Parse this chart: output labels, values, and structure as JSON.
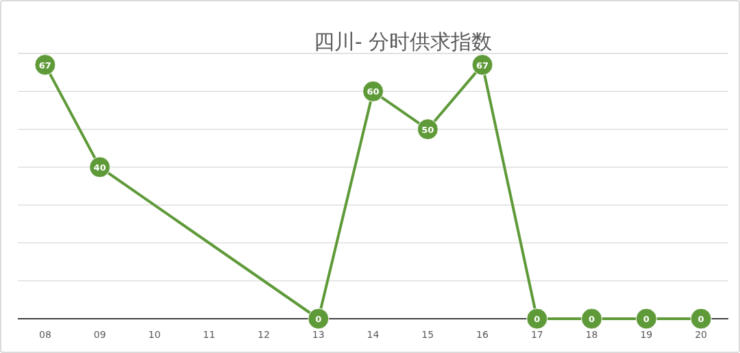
{
  "chart_data": {
    "type": "line",
    "title": "四川- 分时供求指数",
    "categories": [
      "08",
      "09",
      "10",
      "11",
      "12",
      "13",
      "14",
      "15",
      "16",
      "17",
      "18",
      "19",
      "20"
    ],
    "series": [
      {
        "color": "#5f9a39",
        "values": [
          67,
          40,
          null,
          null,
          null,
          0,
          60,
          50,
          67,
          0,
          0,
          0,
          0
        ]
      }
    ],
    "ylim": [
      0,
      70
    ],
    "yticks": [
      {
        "value": 0,
        "label": null
      },
      {
        "value": 10,
        "label": null
      },
      {
        "value": 20,
        "label": null
      },
      {
        "value": 30,
        "label": null
      },
      {
        "value": 40,
        "label": null
      },
      {
        "value": 50,
        "label": null
      },
      {
        "value": 60,
        "label": null
      },
      {
        "value": 70,
        "label": null
      }
    ],
    "grid": "y",
    "marker": "circle",
    "data_labels": true,
    "tick_labels": "x"
  }
}
